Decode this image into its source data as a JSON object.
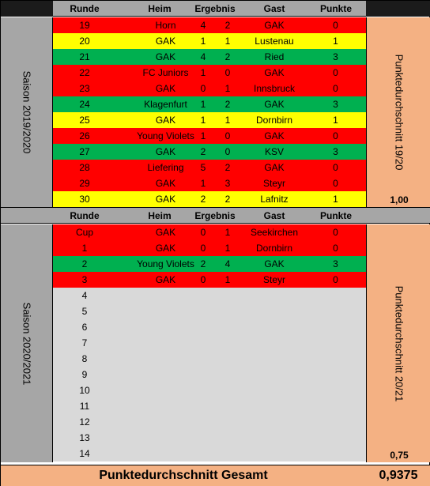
{
  "headers": {
    "runde": "Runde",
    "heim": "Heim",
    "ergebnis": "Ergebnis",
    "gast": "Gast",
    "punkte": "Punkte"
  },
  "colors": {
    "loss": "#ff0000",
    "draw": "#ffff00",
    "win": "#00b050",
    "future": "#d9d9d9",
    "average": "#f4b183",
    "header": "#a6a6a6"
  },
  "season1": {
    "label": "Saison 2019/2020",
    "avg_label": "Punktedurchschnitt 19/20",
    "avg_value": "1,00",
    "games": [
      {
        "runde": "19",
        "heim": "Horn",
        "h": "4",
        "g": "2",
        "gast": "GAK",
        "pkt": "0",
        "result": "loss"
      },
      {
        "runde": "20",
        "heim": "GAK",
        "h": "1",
        "g": "1",
        "gast": "Lustenau",
        "pkt": "1",
        "result": "draw"
      },
      {
        "runde": "21",
        "heim": "GAK",
        "h": "4",
        "g": "2",
        "gast": "Ried",
        "pkt": "3",
        "result": "win"
      },
      {
        "runde": "22",
        "heim": "FC Juniors",
        "h": "1",
        "g": "0",
        "gast": "GAK",
        "pkt": "0",
        "result": "loss"
      },
      {
        "runde": "23",
        "heim": "GAK",
        "h": "0",
        "g": "1",
        "gast": "Innsbruck",
        "pkt": "0",
        "result": "loss"
      },
      {
        "runde": "24",
        "heim": "Klagenfurt",
        "h": "1",
        "g": "2",
        "gast": "GAK",
        "pkt": "3",
        "result": "win"
      },
      {
        "runde": "25",
        "heim": "GAK",
        "h": "1",
        "g": "1",
        "gast": "Dornbirn",
        "pkt": "1",
        "result": "draw"
      },
      {
        "runde": "26",
        "heim": "Young Violets",
        "h": "1",
        "g": "0",
        "gast": "GAK",
        "pkt": "0",
        "result": "loss"
      },
      {
        "runde": "27",
        "heim": "GAK",
        "h": "2",
        "g": "0",
        "gast": "KSV",
        "pkt": "3",
        "result": "win"
      },
      {
        "runde": "28",
        "heim": "Liefering",
        "h": "5",
        "g": "2",
        "gast": "GAK",
        "pkt": "0",
        "result": "loss"
      },
      {
        "runde": "29",
        "heim": "GAK",
        "h": "1",
        "g": "3",
        "gast": "Steyr",
        "pkt": "0",
        "result": "loss"
      },
      {
        "runde": "30",
        "heim": "GAK",
        "h": "2",
        "g": "2",
        "gast": "Lafnitz",
        "pkt": "1",
        "result": "draw"
      }
    ]
  },
  "season2": {
    "label": "Saison 2020/2021",
    "avg_label": "Punktedurchschnitt 20/21",
    "avg_value": "0,75",
    "games": [
      {
        "runde": "Cup",
        "heim": "GAK",
        "h": "0",
        "g": "1",
        "gast": "Seekirchen",
        "pkt": "0",
        "result": "loss"
      },
      {
        "runde": "1",
        "heim": "GAK",
        "h": "0",
        "g": "1",
        "gast": "Dornbirn",
        "pkt": "0",
        "result": "loss"
      },
      {
        "runde": "2",
        "heim": "Young Violets",
        "h": "2",
        "g": "4",
        "gast": "GAK",
        "pkt": "3",
        "result": "win"
      },
      {
        "runde": "3",
        "heim": "GAK",
        "h": "0",
        "g": "1",
        "gast": "Steyr",
        "pkt": "0",
        "result": "loss"
      },
      {
        "runde": "4",
        "heim": "",
        "h": "",
        "g": "",
        "gast": "",
        "pkt": "",
        "result": "future"
      },
      {
        "runde": "5",
        "heim": "",
        "h": "",
        "g": "",
        "gast": "",
        "pkt": "",
        "result": "future"
      },
      {
        "runde": "6",
        "heim": "",
        "h": "",
        "g": "",
        "gast": "",
        "pkt": "",
        "result": "future"
      },
      {
        "runde": "7",
        "heim": "",
        "h": "",
        "g": "",
        "gast": "",
        "pkt": "",
        "result": "future"
      },
      {
        "runde": "8",
        "heim": "",
        "h": "",
        "g": "",
        "gast": "",
        "pkt": "",
        "result": "future"
      },
      {
        "runde": "9",
        "heim": "",
        "h": "",
        "g": "",
        "gast": "",
        "pkt": "",
        "result": "future"
      },
      {
        "runde": "10",
        "heim": "",
        "h": "",
        "g": "",
        "gast": "",
        "pkt": "",
        "result": "future"
      },
      {
        "runde": "11",
        "heim": "",
        "h": "",
        "g": "",
        "gast": "",
        "pkt": "",
        "result": "future"
      },
      {
        "runde": "12",
        "heim": "",
        "h": "",
        "g": "",
        "gast": "",
        "pkt": "",
        "result": "future"
      },
      {
        "runde": "13",
        "heim": "",
        "h": "",
        "g": "",
        "gast": "",
        "pkt": "",
        "result": "future"
      },
      {
        "runde": "14",
        "heim": "",
        "h": "",
        "g": "",
        "gast": "",
        "pkt": "",
        "result": "future"
      }
    ]
  },
  "total": {
    "label": "Punktedurchschnitt Gesamt",
    "value": "0,9375"
  }
}
